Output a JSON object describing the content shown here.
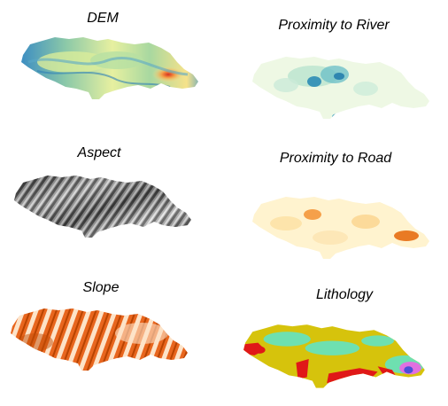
{
  "panels": [
    {
      "title": "DEM"
    },
    {
      "title": "Proximity to River"
    },
    {
      "title": "Aspect"
    },
    {
      "title": "Proximity to Road"
    },
    {
      "title": "Slope"
    },
    {
      "title": "Lithology"
    }
  ]
}
